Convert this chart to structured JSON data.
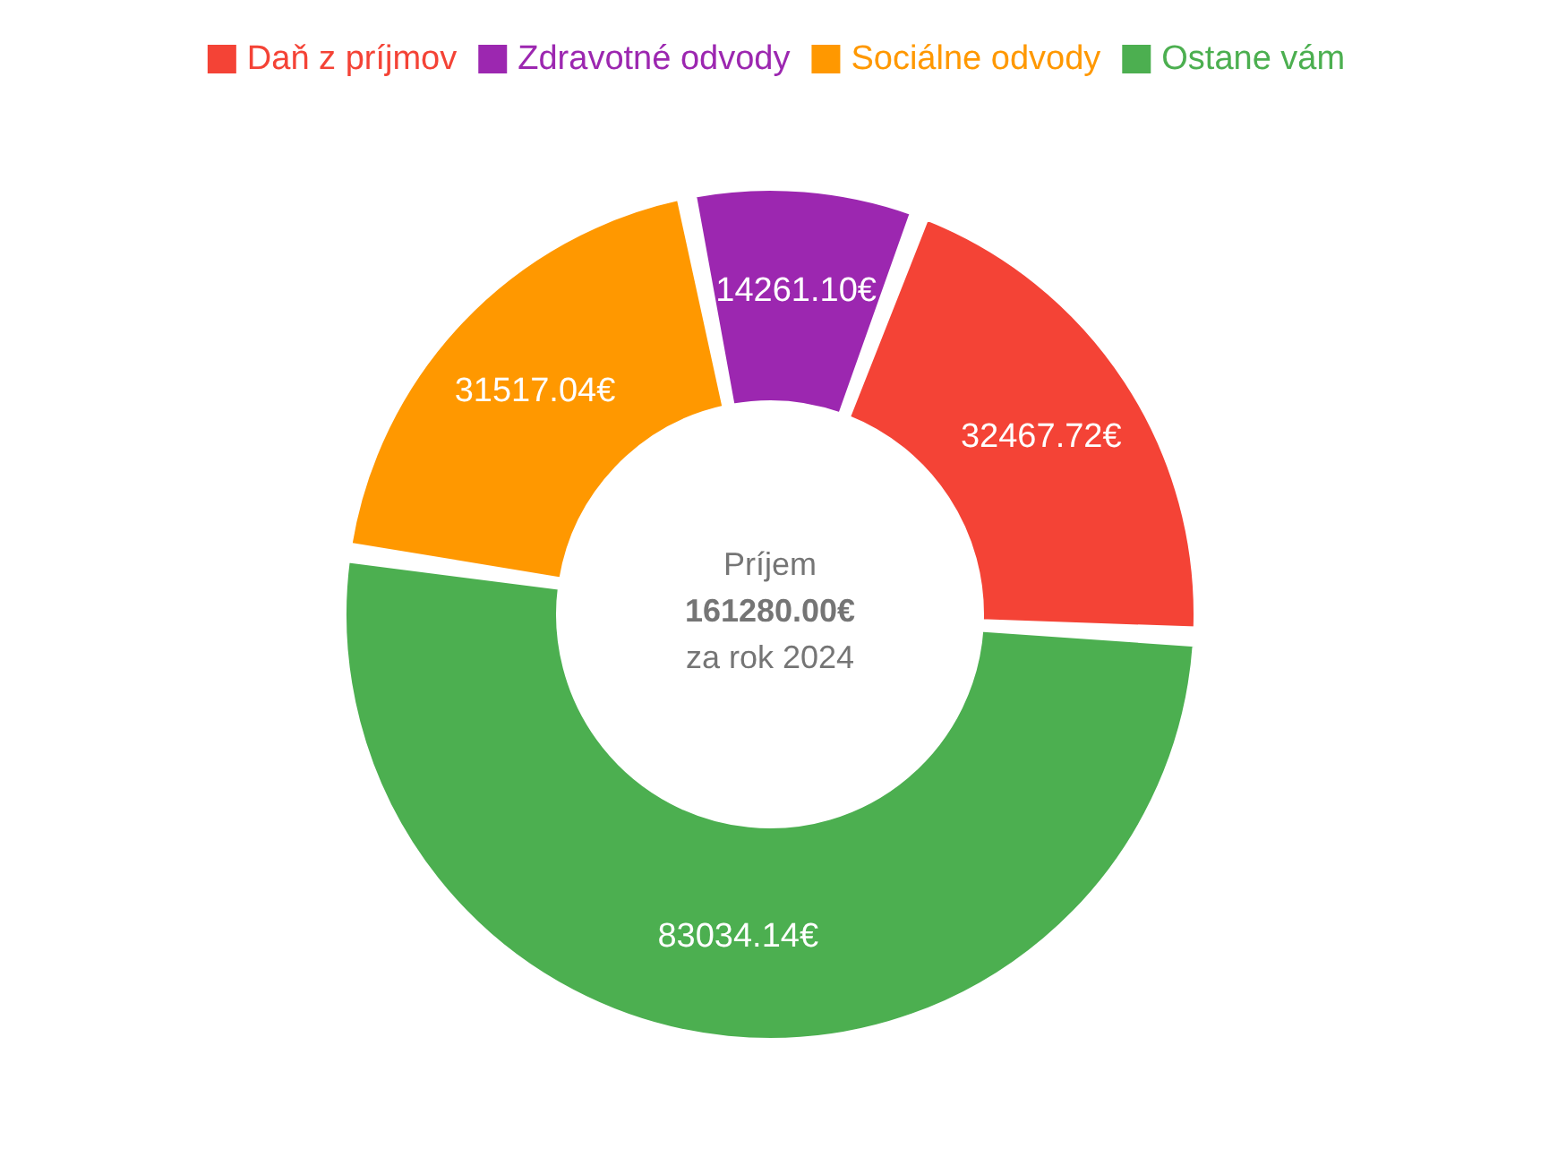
{
  "chart_data": {
    "type": "donut",
    "categories": [
      "Daň z príjmov",
      "Zdravotné odvody",
      "Sociálne odvody",
      "Ostane vám"
    ],
    "values": [
      32467.72,
      14261.1,
      31517.04,
      83034.14
    ],
    "colors": [
      "#f44336",
      "#9c27b0",
      "#ff9800",
      "#4caf50"
    ],
    "value_labels": [
      "32467.72€",
      "14261.10€",
      "31517.04€",
      "83034.14€"
    ],
    "annotations": [
      "Príjem",
      "161280.00€",
      "za rok 2024"
    ],
    "legend": "top"
  }
}
